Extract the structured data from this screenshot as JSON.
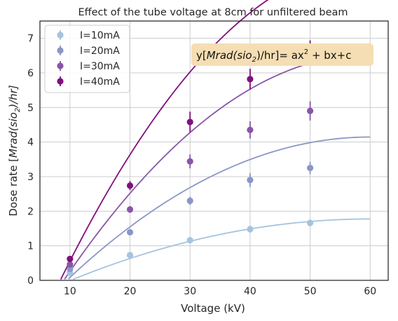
{
  "chart_data": {
    "type": "line",
    "title": "Effect of the tube voltage at 8cm for unfiltered beam",
    "xlabel": "Voltage (kV)",
    "ylabel_prefix": "Dose rate [",
    "ylabel_unit": "Mrad(sio",
    "ylabel_sub": "2",
    "ylabel_suffix": ")/hr]",
    "xlim": [
      5,
      63
    ],
    "ylim": [
      0,
      7.5
    ],
    "xticks": [
      10,
      20,
      30,
      40,
      50,
      60
    ],
    "yticks": [
      0,
      1,
      2,
      3,
      4,
      5,
      6,
      7
    ],
    "grid": true,
    "legend_position": "upper-left",
    "annotation": {
      "prefix": "y[",
      "unit": "Mrad(sio",
      "sub": "2",
      "suffix": ")/hr]= ax",
      "sup": "2",
      "tail": " + bx+c",
      "box_color": "#f5deb3"
    },
    "series": [
      {
        "name": "I=10mA",
        "color": "#a6c3df",
        "x": [
          10,
          20,
          30,
          40,
          50
        ],
        "y": [
          0.22,
          0.73,
          1.16,
          1.48,
          1.66
        ],
        "err": [
          0.05,
          0.07,
          0.08,
          0.1,
          0.1
        ],
        "fit": {
          "a": -0.000709,
          "b": 0.0853,
          "c": -0.79
        }
      },
      {
        "name": "I=20mA",
        "color": "#8c96c6",
        "x": [
          10,
          20,
          30,
          40,
          50
        ],
        "y": [
          0.33,
          1.39,
          2.3,
          2.9,
          3.25
        ],
        "err": [
          0.06,
          0.08,
          0.12,
          0.2,
          0.18
        ],
        "fit": {
          "a": -0.001623,
          "b": 0.1948,
          "c": -1.7
        },
        "fit_xmin": 8.0
      },
      {
        "name": "I=30mA",
        "color": "#8856a7",
        "x": [
          10,
          20,
          30,
          40,
          50
        ],
        "y": [
          0.46,
          2.05,
          3.44,
          4.35,
          4.9
        ],
        "err": [
          0.07,
          0.1,
          0.2,
          0.25,
          0.28
        ],
        "fit": {
          "a": -0.002509,
          "b": 0.3011,
          "c": -2.5
        },
        "fit_xmin": 7.8
      },
      {
        "name": "I=40mA",
        "color": "#810f7c",
        "x": [
          10,
          20,
          30,
          40,
          50
        ],
        "y": [
          0.62,
          2.74,
          4.58,
          5.82,
          6.62
        ],
        "err": [
          0.08,
          0.13,
          0.3,
          0.3,
          0.32
        ],
        "fit": {
          "a": -0.003414,
          "b": 0.41,
          "c": -3.2
        },
        "fit_xmin": 7.6
      }
    ]
  }
}
